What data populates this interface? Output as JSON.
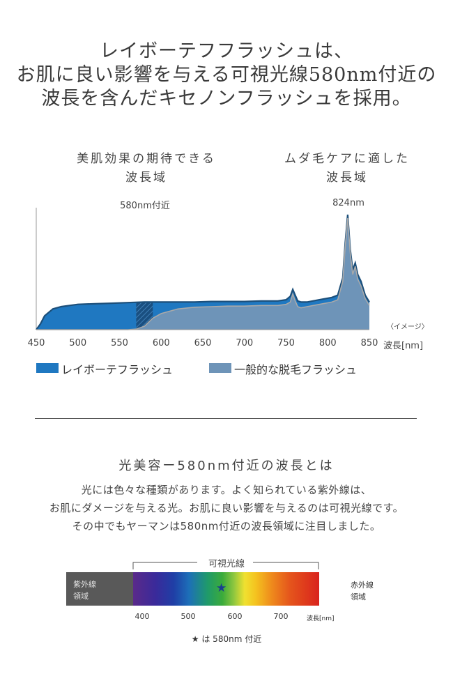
{
  "headline": {
    "line1": "レイボーテフフラッシュは、",
    "line2": "お肌に良い影響を与える可視光線580nm付近の",
    "line3": "波長を含んだキセノンフラッシュを採用。"
  },
  "chart_labels": {
    "left_line1": "美肌効果の期待できる",
    "left_line2": "波長域",
    "right_line1": "ムダ毛ケアに適した",
    "right_line2": "波長域",
    "marker_580": "580nm付近",
    "marker_824": "824nm",
    "image_note": "〈イメージ〉",
    "x_unit": "波長[nm]"
  },
  "legend": {
    "item1": "レイボーテフラッシュ",
    "item2": "一般的な脱毛フラッシュ"
  },
  "colors": {
    "raybeaute": "#1f78c1",
    "general": "#6e94b8",
    "raybeaute_edge": "#1c4f7a",
    "general_edge": "#a9a9a9"
  },
  "chart_data": {
    "type": "area",
    "xlabel": "波長[nm]",
    "ylabel": "",
    "xlim": [
      450,
      850
    ],
    "x_ticks": [
      "450",
      "500",
      "550",
      "600",
      "650",
      "700",
      "750",
      "800",
      "850"
    ],
    "series": [
      {
        "name": "レイボーテフラッシュ",
        "x": [
          450,
          455,
          460,
          470,
          480,
          490,
          500,
          520,
          540,
          560,
          580,
          600,
          620,
          640,
          660,
          680,
          700,
          720,
          740,
          750,
          755,
          758,
          761,
          764,
          768,
          775,
          790,
          805,
          812,
          818,
          821,
          824,
          827,
          830,
          833,
          836,
          840,
          845,
          850
        ],
        "values": [
          0.0,
          0.05,
          0.12,
          0.18,
          0.2,
          0.21,
          0.22,
          0.225,
          0.23,
          0.235,
          0.24,
          0.24,
          0.24,
          0.24,
          0.245,
          0.245,
          0.245,
          0.25,
          0.25,
          0.26,
          0.29,
          0.35,
          0.3,
          0.25,
          0.24,
          0.24,
          0.26,
          0.28,
          0.3,
          0.45,
          0.75,
          1.0,
          0.7,
          0.52,
          0.58,
          0.48,
          0.42,
          0.3,
          0.24
        ]
      },
      {
        "name": "一般的な脱毛フラッシュ",
        "x": [
          450,
          500,
          550,
          560,
          570,
          580,
          590,
          600,
          620,
          640,
          660,
          680,
          700,
          720,
          740,
          750,
          755,
          758,
          761,
          764,
          768,
          775,
          790,
          805,
          812,
          818,
          821,
          824,
          827,
          830,
          833,
          836,
          840,
          845,
          850
        ],
        "values": [
          0.0,
          0.0,
          0.0,
          0.0,
          0.005,
          0.03,
          0.1,
          0.14,
          0.18,
          0.195,
          0.2,
          0.205,
          0.205,
          0.21,
          0.21,
          0.22,
          0.24,
          0.31,
          0.25,
          0.2,
          0.19,
          0.2,
          0.22,
          0.24,
          0.26,
          0.42,
          0.72,
          0.97,
          0.67,
          0.48,
          0.55,
          0.44,
          0.38,
          0.27,
          0.21
        ]
      }
    ],
    "highlight_band": [
      570,
      590
    ]
  },
  "section2": {
    "title": "光美容ー580nm付近の波長とは",
    "para_line1": "光には色々な種類があります。よく知られている紫外線は、",
    "para_line2": "お肌にダメージを与える光。お肌に良い影響を与えるのは可視光線です。",
    "para_line3": "その中でもヤーマンは580nm付近の波長領域に注目しました。"
  },
  "spectrum": {
    "bracket_label": "可視光線",
    "uv_line1": "紫外線",
    "uv_line2": "領域",
    "ir_line1": "赤外線",
    "ir_line2": "領域",
    "ticks": [
      "400",
      "500",
      "600",
      "700"
    ],
    "unit": "波長[nm]",
    "footnote": "★ は 580nm 付近"
  }
}
